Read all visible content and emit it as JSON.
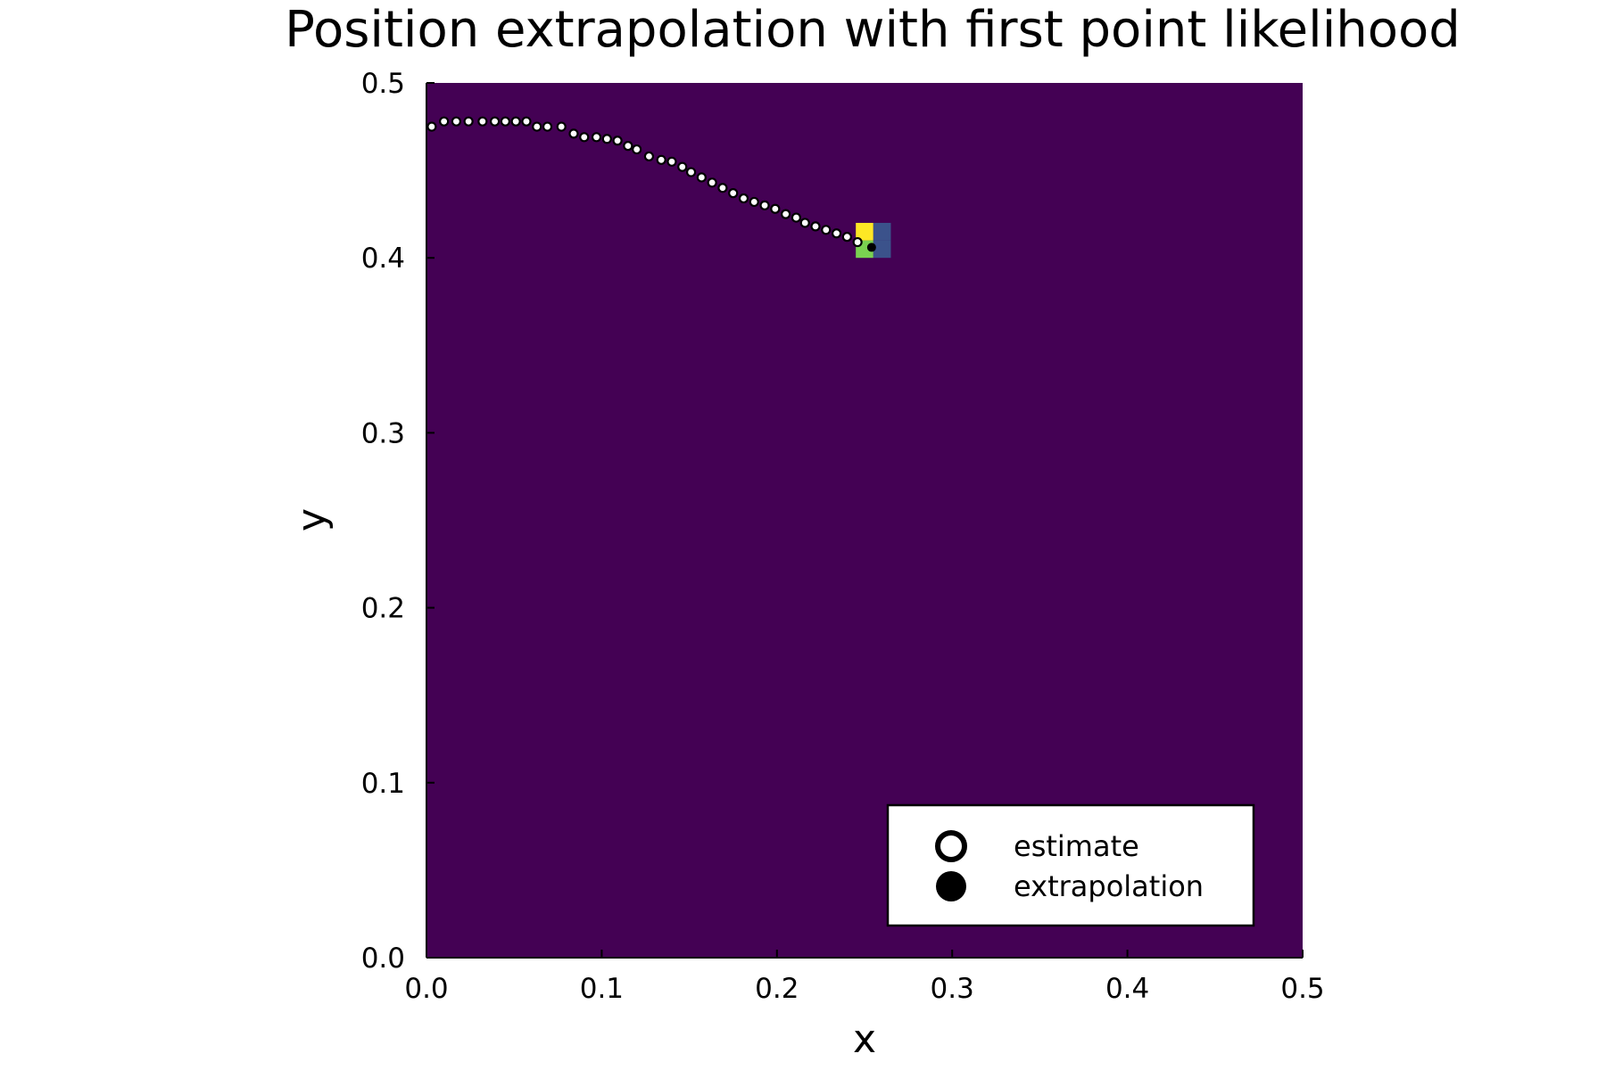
{
  "chart_data": {
    "type": "heatmap",
    "title": "Position extrapolation with first point likelihood",
    "xlabel": "x",
    "ylabel": "y",
    "xlim": [
      0.0,
      0.5
    ],
    "ylim": [
      0.0,
      0.5
    ],
    "x_ticks": [
      "0.0",
      "0.1",
      "0.2",
      "0.3",
      "0.4",
      "0.5"
    ],
    "y_ticks": [
      "0.0",
      "0.1",
      "0.2",
      "0.3",
      "0.4",
      "0.5"
    ],
    "grid": false,
    "legend_position": "bottom-right",
    "colormap": "viridis",
    "colors": {
      "background": "#440154",
      "low": "#440154",
      "mid": "#3b528b",
      "high_green": "#7ad151",
      "high_yellow": "#fde725",
      "estimate_fill": "#ffffff",
      "marker_edge": "#000000",
      "extrapolation_fill": "#000000"
    },
    "heatmap_cells": [
      {
        "x": [
          0.245,
          0.255
        ],
        "y": [
          0.4,
          0.41
        ],
        "level": 0.7
      },
      {
        "x": [
          0.245,
          0.255
        ],
        "y": [
          0.41,
          0.42
        ],
        "level": 1.0
      },
      {
        "x": [
          0.255,
          0.265
        ],
        "y": [
          0.4,
          0.41
        ],
        "level": 0.3
      },
      {
        "x": [
          0.255,
          0.265
        ],
        "y": [
          0.41,
          0.42
        ],
        "level": 0.3
      }
    ],
    "series": [
      {
        "name": "estimate",
        "marker": "open-circle",
        "x": [
          0.003,
          0.01,
          0.017,
          0.024,
          0.032,
          0.039,
          0.045,
          0.051,
          0.057,
          0.063,
          0.069,
          0.077,
          0.084,
          0.09,
          0.097,
          0.103,
          0.109,
          0.115,
          0.12,
          0.127,
          0.134,
          0.14,
          0.146,
          0.151,
          0.157,
          0.163,
          0.169,
          0.175,
          0.181,
          0.187,
          0.193,
          0.199,
          0.205,
          0.211,
          0.216,
          0.222,
          0.228,
          0.234,
          0.24,
          0.246
        ],
        "y": [
          0.475,
          0.478,
          0.478,
          0.478,
          0.478,
          0.478,
          0.478,
          0.478,
          0.478,
          0.475,
          0.475,
          0.475,
          0.471,
          0.469,
          0.469,
          0.468,
          0.467,
          0.464,
          0.462,
          0.458,
          0.456,
          0.455,
          0.452,
          0.449,
          0.446,
          0.443,
          0.44,
          0.437,
          0.434,
          0.432,
          0.43,
          0.428,
          0.425,
          0.423,
          0.42,
          0.418,
          0.416,
          0.414,
          0.412,
          0.409
        ]
      },
      {
        "name": "extrapolation",
        "marker": "filled-circle",
        "x": [
          0.254
        ],
        "y": [
          0.406
        ]
      }
    ]
  }
}
